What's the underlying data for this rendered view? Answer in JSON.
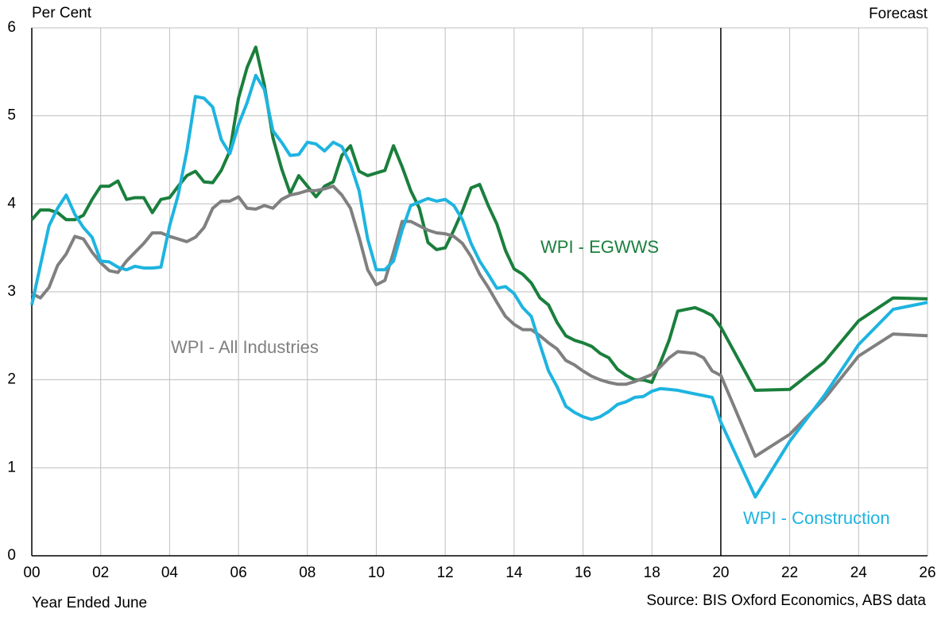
{
  "chart_data": {
    "type": "line",
    "y_label": "Per Cent",
    "x_label": "Year Ended June",
    "source": "Source: BIS Oxford Economics, ABS data",
    "forecast_label": "Forecast",
    "forecast_start": 20,
    "xlim": [
      0,
      26
    ],
    "ylim": [
      0,
      6
    ],
    "grid": true,
    "xticks": [
      {
        "value": 0,
        "label": "00"
      },
      {
        "value": 2,
        "label": "02"
      },
      {
        "value": 4,
        "label": "04"
      },
      {
        "value": 6,
        "label": "06"
      },
      {
        "value": 8,
        "label": "08"
      },
      {
        "value": 10,
        "label": "10"
      },
      {
        "value": 12,
        "label": "12"
      },
      {
        "value": 14,
        "label": "14"
      },
      {
        "value": 16,
        "label": "16"
      },
      {
        "value": 18,
        "label": "18"
      },
      {
        "value": 20,
        "label": "20"
      },
      {
        "value": 22,
        "label": "22"
      },
      {
        "value": 24,
        "label": "24"
      },
      {
        "value": 26,
        "label": "26"
      }
    ],
    "yticks": [
      0,
      1,
      2,
      3,
      4,
      5,
      6
    ],
    "x": [
      0,
      0.25,
      0.5,
      0.75,
      1,
      1.25,
      1.5,
      1.75,
      2,
      2.25,
      2.5,
      2.75,
      3,
      3.25,
      3.5,
      3.75,
      4,
      4.25,
      4.5,
      4.75,
      5,
      5.25,
      5.5,
      5.75,
      6,
      6.25,
      6.5,
      6.75,
      7,
      7.25,
      7.5,
      7.75,
      8,
      8.25,
      8.5,
      8.75,
      9,
      9.25,
      9.5,
      9.75,
      10,
      10.25,
      10.5,
      10.75,
      11,
      11.25,
      11.5,
      11.75,
      12,
      12.25,
      12.5,
      12.75,
      13,
      13.25,
      13.5,
      13.75,
      14,
      14.25,
      14.5,
      14.75,
      15,
      15.25,
      15.5,
      15.75,
      16,
      16.25,
      16.5,
      16.75,
      17,
      17.25,
      17.5,
      17.75,
      18,
      18.25,
      18.5,
      18.75,
      19,
      19.25,
      19.5,
      19.75,
      20,
      21,
      22,
      23,
      24,
      25,
      26
    ],
    "series": [
      {
        "name": "WPI - EGWWS",
        "color": "#1a7f3c",
        "values": [
          3.82,
          3.93,
          3.93,
          3.9,
          3.82,
          3.82,
          3.87,
          4.05,
          4.2,
          4.2,
          4.26,
          4.05,
          4.07,
          4.07,
          3.9,
          4.05,
          4.07,
          4.2,
          4.32,
          4.37,
          4.25,
          4.24,
          4.38,
          4.6,
          5.2,
          5.55,
          5.78,
          5.35,
          4.75,
          4.4,
          4.12,
          4.32,
          4.2,
          4.08,
          4.2,
          4.25,
          4.55,
          4.66,
          4.37,
          4.32,
          4.35,
          4.38,
          4.66,
          4.42,
          4.15,
          3.95,
          3.56,
          3.48,
          3.5,
          3.7,
          3.92,
          4.18,
          4.22,
          3.98,
          3.77,
          3.47,
          3.26,
          3.2,
          3.1,
          2.93,
          2.85,
          2.65,
          2.5,
          2.45,
          2.42,
          2.38,
          2.3,
          2.25,
          2.12,
          2.05,
          2.0,
          2.0,
          1.97,
          2.2,
          2.45,
          2.78,
          2.8,
          2.82,
          2.78,
          2.73,
          2.6,
          1.88,
          1.89,
          2.2,
          2.67,
          2.93,
          2.92
        ]
      },
      {
        "name": "WPI - All Industries",
        "color": "#808080",
        "values": [
          2.98,
          2.93,
          3.05,
          3.3,
          3.43,
          3.63,
          3.6,
          3.45,
          3.33,
          3.24,
          3.22,
          3.35,
          3.45,
          3.55,
          3.67,
          3.67,
          3.63,
          3.6,
          3.57,
          3.62,
          3.73,
          3.95,
          4.03,
          4.03,
          4.08,
          3.95,
          3.94,
          3.98,
          3.95,
          4.05,
          4.1,
          4.12,
          4.15,
          4.15,
          4.17,
          4.2,
          4.1,
          3.95,
          3.62,
          3.25,
          3.08,
          3.13,
          3.45,
          3.8,
          3.8,
          3.75,
          3.7,
          3.67,
          3.66,
          3.63,
          3.55,
          3.4,
          3.2,
          3.05,
          2.88,
          2.72,
          2.63,
          2.57,
          2.57,
          2.5,
          2.42,
          2.35,
          2.22,
          2.17,
          2.1,
          2.04,
          2.0,
          1.97,
          1.95,
          1.95,
          1.98,
          2.02,
          2.06,
          2.15,
          2.25,
          2.32,
          2.31,
          2.3,
          2.25,
          2.1,
          2.05,
          1.13,
          1.38,
          1.78,
          2.27,
          2.52,
          2.5
        ]
      },
      {
        "name": "WPI - Construction",
        "color": "#1eb4e0",
        "values": [
          2.85,
          3.3,
          3.75,
          3.95,
          4.1,
          3.88,
          3.73,
          3.62,
          3.35,
          3.34,
          3.28,
          3.25,
          3.29,
          3.27,
          3.27,
          3.28,
          3.75,
          4.1,
          4.6,
          5.22,
          5.2,
          5.1,
          4.73,
          4.57,
          4.9,
          5.15,
          5.46,
          5.3,
          4.83,
          4.7,
          4.55,
          4.56,
          4.7,
          4.68,
          4.6,
          4.7,
          4.65,
          4.45,
          4.15,
          3.6,
          3.25,
          3.25,
          3.35,
          3.7,
          3.98,
          4.02,
          4.06,
          4.03,
          4.05,
          3.98,
          3.82,
          3.55,
          3.35,
          3.2,
          3.04,
          3.06,
          2.98,
          2.82,
          2.72,
          2.4,
          2.1,
          1.92,
          1.7,
          1.63,
          1.58,
          1.55,
          1.58,
          1.64,
          1.72,
          1.75,
          1.8,
          1.81,
          1.87,
          1.9,
          1.89,
          1.88,
          1.86,
          1.84,
          1.82,
          1.8,
          1.52,
          0.67,
          1.3,
          1.82,
          2.4,
          2.8,
          2.88
        ]
      }
    ]
  }
}
